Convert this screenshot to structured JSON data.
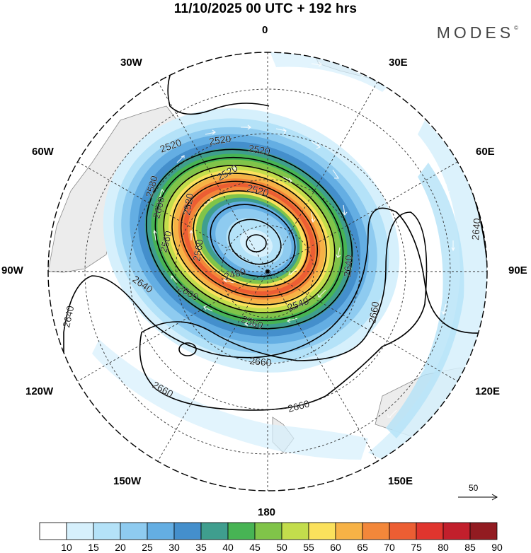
{
  "title": "11/10/2025  00 UTC  + 192 hrs",
  "brand": "MODES",
  "brand_mark": "©",
  "longitude_labels": {
    "lon_0": "0",
    "lon_30E": "30E",
    "lon_60E": "60E",
    "lon_90E": "90E",
    "lon_120E": "120E",
    "lon_150E": "150E",
    "lon_180": "180",
    "lon_150W": "150W",
    "lon_120W": "120W",
    "lon_90W": "90W",
    "lon_60W": "60W",
    "lon_30W": "30W"
  },
  "contours": {
    "labels": [
      "2520",
      "2520",
      "2520",
      "2520",
      "2520",
      "2520",
      "2560",
      "2600",
      "2580",
      "2560",
      "2480",
      "2540",
      "2560",
      "2600",
      "2640",
      "2640",
      "2640",
      "2640",
      "2660",
      "2660",
      "2660",
      "2660"
    ],
    "levels": [
      2480,
      2500,
      2520,
      2540,
      2560,
      2580,
      2600,
      2620,
      2640,
      2660
    ]
  },
  "vector_reference": {
    "label": "50"
  },
  "colorbar": {
    "labels": [
      "10",
      "15",
      "20",
      "25",
      "30",
      "35",
      "40",
      "45",
      "50",
      "55",
      "60",
      "65",
      "70",
      "75",
      "80",
      "85",
      "90"
    ],
    "colors": [
      "#ffffff",
      "#d6f0fc",
      "#b4e2f8",
      "#8ecbf0",
      "#64aee3",
      "#448fcc",
      "#3f9e8e",
      "#47b454",
      "#80c449",
      "#c3dd4c",
      "#fbe15c",
      "#f7b246",
      "#f3873a",
      "#ec5e33",
      "#e0352e",
      "#c21f2c",
      "#921b21"
    ]
  },
  "colors": {
    "land": "#ececec",
    "grid": "#333333",
    "coast": "#888888"
  }
}
